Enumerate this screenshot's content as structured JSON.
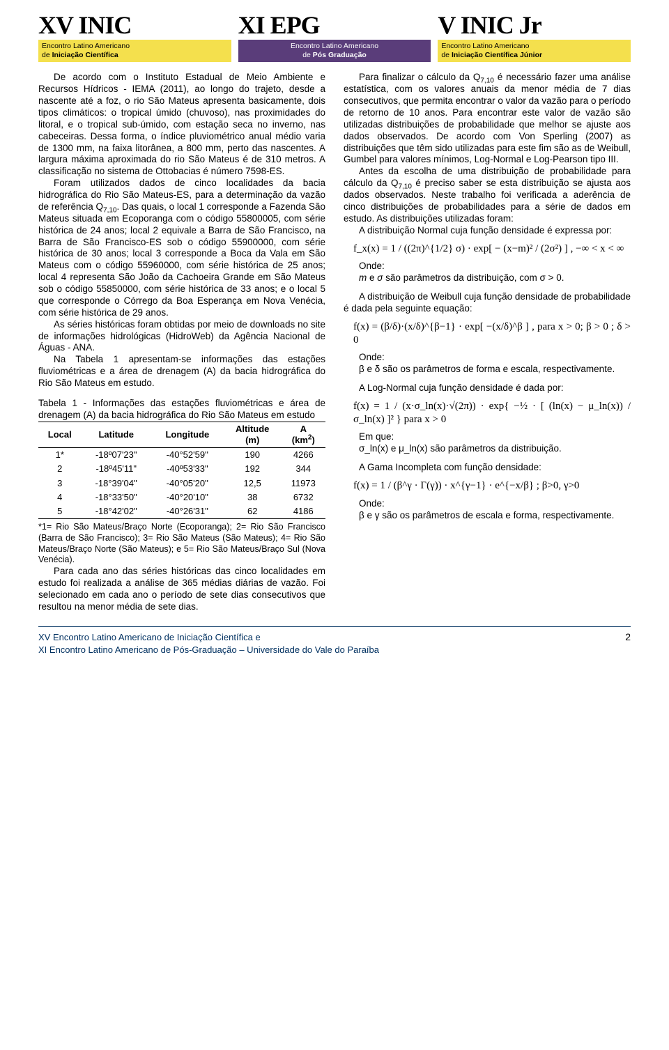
{
  "header": {
    "logos": [
      {
        "title": "XV INIC",
        "bar_class": "logo-bar-yellow",
        "line1": "Encontro Latino Americano",
        "line2": "de Iniciação Científica"
      },
      {
        "title": "XI EPG",
        "bar_class": "logo-bar-purple",
        "line1": "Encontro Latino Americano",
        "line2": "de Pós Graduação"
      },
      {
        "title": "V INIC Jr",
        "bar_class": "logo-bar-yellow",
        "line1": "Encontro Latino Americano",
        "line2": "de Iniciação Científica Júnior"
      }
    ]
  },
  "left_column": {
    "p1": "De acordo com o Instituto Estadual de Meio Ambiente e Recursos Hídricos - IEMA (2011), ao longo do trajeto, desde a nascente até a foz, o rio São Mateus apresenta basicamente, dois tipos climáticos: o tropical úmido (chuvoso), nas proximidades do litoral, e o tropical sub-úmido, com estação seca no inverno, nas cabeceiras. Dessa forma, o índice pluviométrico anual médio varia de 1300 mm, na faixa litorânea, a 800 mm, perto das nascentes. A largura máxima aproximada do rio São Mateus é de 310 metros. A classificação no sistema de Ottobacias é número 7598-ES.",
    "p2a": "Foram utilizados dados de cinco localidades da bacia hidrográfica do Rio São Mateus-ES, para a determinação da vazão de referência Q",
    "p2sub": "7,10",
    "p2b": ". Das quais, o local 1 corresponde a Fazenda São Mateus situada em Ecoporanga com o código 55800005, com série histórica de 24 anos; local 2 equivale a Barra de São Francisco, na Barra de São Francisco-ES sob o código 55900000, com série histórica de 30 anos; local 3 corresponde a Boca da Vala em São Mateus com o código 55960000, com série histórica de 25 anos; local 4 representa São João da Cachoeira Grande em São Mateus sob o código 55850000, com série histórica de 33 anos; e o local 5 que corresponde o Córrego da Boa Esperança em Nova Venécia, com série histórica de 29 anos.",
    "p3": "As séries históricas foram obtidas por meio de downloads no site de informações hidrológicas (HidroWeb) da Agência Nacional de Águas - ANA.",
    "p4": "Na Tabela 1 apresentam-se informações das estações fluviométricas e a área de drenagem (A) da bacia hidrográfica do Rio São Mateus em estudo.",
    "table_caption": "Tabela 1 - Informações das estações fluviométricas e área de drenagem (A) da bacia hidrográfica do Rio São Mateus em estudo",
    "table": {
      "headers": [
        "Local",
        "Latitude",
        "Longitude",
        "Altitude\n(m)",
        "A\n(km²)"
      ],
      "rows": [
        [
          "1*",
          "-18º07'23\"",
          "-40°52'59''",
          "190",
          "4266"
        ],
        [
          "2",
          "-18º45'11\"",
          "-40º53'33\"",
          "192",
          "344"
        ],
        [
          "3",
          "-18°39'04''",
          "-40°05'20''",
          "12,5",
          "11973"
        ],
        [
          "4",
          "-18°33'50\"",
          "-40°20'10\"",
          "38",
          "6732"
        ],
        [
          "5",
          "-18°42'02\"",
          "-40°26'31\"",
          "62",
          "4186"
        ]
      ]
    },
    "table_footnote": "*1= Rio São Mateus/Braço Norte (Ecoporanga); 2= Rio São Francisco (Barra de São Francisco); 3= Rio São Mateus (São Mateus); 4= Rio São Mateus/Braço Norte (São Mateus); e 5= Rio São Mateus/Braço Sul (Nova Venécia).",
    "p5": "Para cada ano das séries históricas das cinco localidades em estudo foi realizada a análise de 365 médias diárias de vazão. Foi selecionado em cada ano o período de sete dias consecutivos que resultou na menor média de sete dias."
  },
  "right_column": {
    "p1a": "Para finalizar o cálculo da Q",
    "p1sub": "7,10",
    "p1b": " é necessário fazer uma análise estatística, com os valores anuais da menor média de 7 dias consecutivos, que permita encontrar o valor da vazão para o período de retorno de 10 anos. Para encontrar este valor de vazão são utilizadas distribuições de probabilidade que melhor se ajuste aos dados observados. De acordo com Von Sperling (2007) as distribuições que têm sido utilizadas para este fim são as de Weibull, Gumbel para valores mínimos, Log-Normal e Log-Pearson tipo III.",
    "p2a": "Antes da escolha de uma distribuição de probabilidade para cálculo da Q",
    "p2sub": "7,10",
    "p2b": " é preciso saber se esta distribuição se ajusta aos dados observados. Neste trabalho foi verificada a aderência de cinco distribuições de probabilidades para a série de dados em estudo. As distribuições utilizadas foram:",
    "p3": "A distribuição Normal cuja função densidade é expressa por:",
    "formula1": "f_x(x) = 1 / ((2π)^{1/2} σ) · exp[ − (x−m)² / (2σ²) ] ,  −∞ < x < ∞",
    "onde1": "Onde:",
    "onde1b_a": "m",
    "onde1b_mid": " e ",
    "onde1b_b": "σ",
    "onde1b_c": " são parâmetros da distribuição, com ",
    "onde1b_d": "σ > 0.",
    "p4": "A distribuição de Weibull cuja função densidade de probabilidade é dada pela seguinte equação:",
    "formula2": "f(x) = (β/δ)·(x/δ)^{β−1} · exp[ −(x/δ)^β ] , para x > 0; β > 0 ; δ > 0",
    "onde2": "Onde:",
    "onde2b": "β e δ são os parâmetros de forma e escala, respectivamente.",
    "p5": "A Log-Normal cuja função densidade é dada por:",
    "formula3": "f(x) = 1 / (x·σ_ln(x)·√(2π)) · exp{ −½ · [ (ln(x) − μ_ln(x)) / σ_ln(x) ]² }  para x > 0",
    "emque": "Em que:",
    "emque_b": "σ_ln(x) e μ_ln(x) são parâmetros da distribuição.",
    "p6": "A Gama Incompleta com função densidade:",
    "formula4": "f(x) = 1 / (β^γ · Γ(γ)) · x^{γ−1} · e^{−x/β} ;  β>0,  γ>0",
    "onde3": "Onde:",
    "onde3b": "β e γ são os parâmetros de escala e forma, respectivamente."
  },
  "footer": {
    "line1": "XV Encontro Latino Americano de Iniciação Científica e",
    "line2": "XI Encontro Latino Americano de Pós-Graduação – Universidade do Vale do Paraíba",
    "page": "2"
  },
  "colors": {
    "yellow": "#f4e04d",
    "purple": "#5a3d7a",
    "footer_blue": "#003060"
  }
}
